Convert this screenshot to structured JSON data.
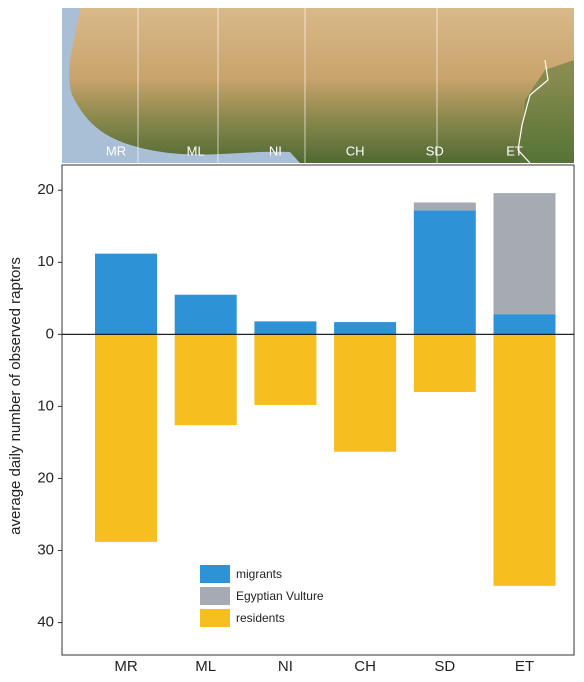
{
  "chart_data": {
    "type": "bar",
    "stacked": true,
    "y_label": "average daily number of observed raptors",
    "categories": [
      "MR",
      "ML",
      "NI",
      "CH",
      "SD",
      "ET"
    ],
    "series": [
      {
        "name": "migrants",
        "color": "#2d93d6",
        "values": [
          11.2,
          5.5,
          1.8,
          1.7,
          17.2,
          2.8
        ]
      },
      {
        "name": "Egyptian Vulture",
        "color": "#a5aab3",
        "values": [
          0,
          0,
          0,
          0,
          1.1,
          16.8
        ]
      },
      {
        "name": "residents",
        "color": "#f6bf1f",
        "values": [
          -28.8,
          -12.6,
          -9.8,
          -16.3,
          -8,
          -34.9
        ]
      }
    ],
    "ylim": [
      -44.5,
      23.5
    ],
    "yticks": [
      {
        "value": -40,
        "label": "40"
      },
      {
        "value": -30,
        "label": "30"
      },
      {
        "value": -20,
        "label": "20"
      },
      {
        "value": -10,
        "label": "10"
      },
      0,
      10,
      20
    ],
    "zero_line": true
  }
}
